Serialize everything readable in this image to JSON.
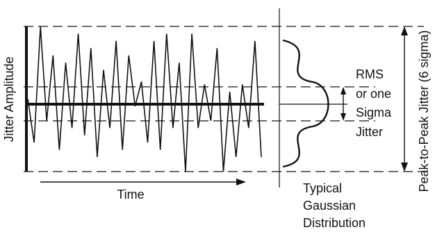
{
  "labels": {
    "y_axis": "Jitter Amplitude",
    "x_axis": "Time",
    "rms": [
      "RMS",
      "or one",
      "Sigma",
      "Jitter"
    ],
    "gaussian": [
      "Typical",
      "Gaussian",
      "Distribution"
    ],
    "peak": "Peak-to-Peak Jitter (6 sigma)"
  },
  "colors": {
    "ink": "#111111",
    "background": "#ffffff"
  },
  "waveform_amplitudes": [
    0.5,
    0.2,
    1.0,
    0.35,
    0.8,
    0.15,
    0.75,
    0.3,
    0.95,
    0.25,
    0.85,
    0.1,
    0.7,
    0.3,
    0.9,
    0.15,
    0.8,
    0.45,
    0.62,
    0.2,
    0.9,
    0.15,
    0.95,
    0.3,
    0.75,
    0.0,
    0.95,
    0.3,
    0.6,
    0.35,
    0.85,
    0.0,
    0.55,
    0.1,
    0.6,
    0.3,
    0.9,
    0.1
  ]
}
